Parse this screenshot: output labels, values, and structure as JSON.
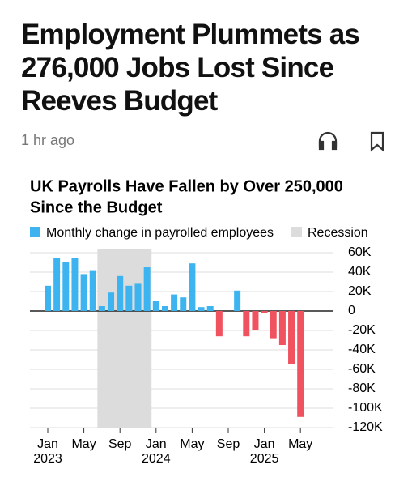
{
  "header": {
    "title_lines": [
      "Employment Plummets as",
      "276,000 Jobs Lost Since",
      "Reeves Budget"
    ],
    "time": "1 hr ago"
  },
  "chart_data": {
    "type": "bar",
    "title_lines": [
      "UK Payrolls Have Fallen by Over 250,000",
      "Since the Budget"
    ],
    "series": [
      {
        "name": "Monthly change in payrolled employees",
        "color": "#3db4ef",
        "negative_color": "#f0525f",
        "values": [
          26,
          55,
          50,
          55,
          38,
          42,
          5,
          19,
          36,
          26,
          28,
          45,
          10,
          5,
          17,
          14,
          49,
          4,
          5,
          -26,
          0,
          21,
          -26,
          -20,
          -2,
          -28,
          -35,
          -55,
          -109
        ]
      }
    ],
    "categories": [
      "Jan",
      null,
      null,
      null,
      "May",
      null,
      null,
      null,
      "Sep",
      null,
      null,
      null,
      "Jan",
      null,
      null,
      null,
      "May",
      null,
      null,
      null,
      "Sep",
      null,
      null,
      null,
      "Jan",
      null,
      null,
      null,
      "May"
    ],
    "year_labels": [
      "2023",
      null,
      null,
      null,
      null,
      null,
      null,
      null,
      null,
      null,
      null,
      null,
      "2024",
      null,
      null,
      null,
      null,
      null,
      null,
      null,
      null,
      null,
      null,
      null,
      "2025",
      null,
      null,
      null,
      null
    ],
    "shading": {
      "name": "Recession",
      "color": "#dcdcdc",
      "from": 6,
      "to": 11
    },
    "ylim": [
      -120,
      60
    ],
    "yticks": [
      {
        "value": 60,
        "label": "60K"
      },
      {
        "value": 40,
        "label": "40K"
      },
      {
        "value": 20,
        "label": "20K"
      },
      0,
      {
        "value": -20,
        "label": "-20K"
      },
      {
        "value": -40,
        "label": "-40K"
      },
      {
        "value": -60,
        "label": "-60K"
      },
      {
        "value": -80,
        "label": "-80K"
      },
      {
        "value": -100,
        "label": "-100K"
      },
      {
        "value": -120,
        "label": "-120K"
      }
    ],
    "grid": true
  }
}
